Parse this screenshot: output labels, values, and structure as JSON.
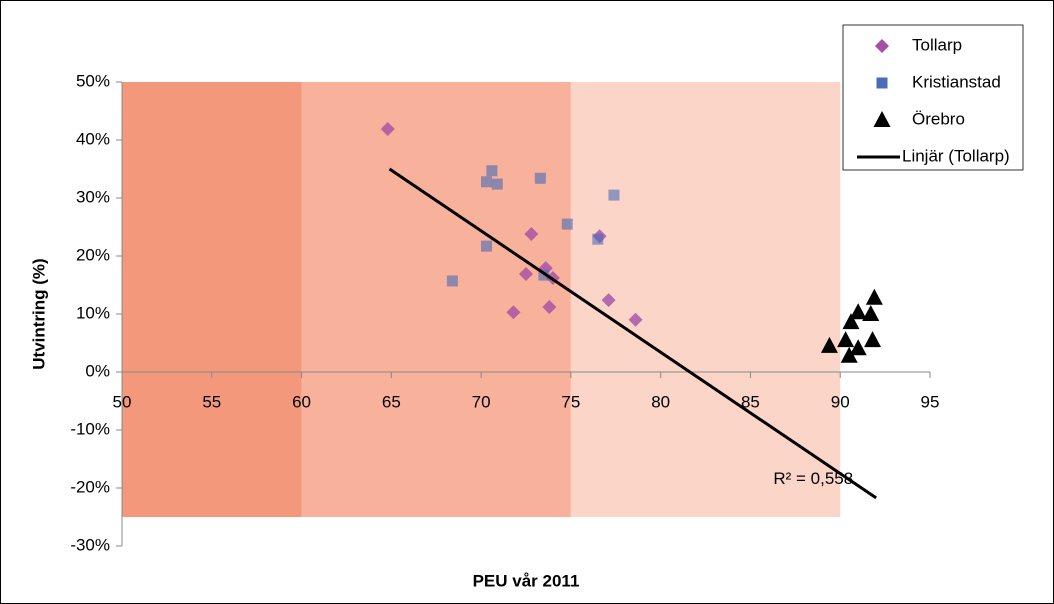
{
  "chart_data": {
    "type": "scatter",
    "x_label": "PEU vår 2011",
    "y_label": "Utvintring (%)",
    "xlim": [
      50,
      95
    ],
    "xticks": [
      50,
      55,
      60,
      65,
      70,
      75,
      80,
      85,
      90,
      95
    ],
    "ylim": [
      -30,
      50
    ],
    "yticks": [
      {
        "value": -30,
        "label": "-30%"
      },
      {
        "value": -20,
        "label": "-20%"
      },
      {
        "value": -10,
        "label": "-10%"
      },
      {
        "value": 0,
        "label": "0%"
      },
      {
        "value": 10,
        "label": "10%"
      },
      {
        "value": 20,
        "label": "20%"
      },
      {
        "value": 30,
        "label": "30%"
      },
      {
        "value": 40,
        "label": "40%"
      },
      {
        "value": 50,
        "label": "50%"
      }
    ],
    "bands": [
      {
        "xlim": [
          50,
          60
        ],
        "color": "#f4987c"
      },
      {
        "xlim": [
          60,
          75
        ],
        "color": "#f8b19b"
      },
      {
        "xlim": [
          75,
          90
        ],
        "color": "#fbd6c8"
      }
    ],
    "band_ylim": [
      -25,
      50
    ],
    "series": [
      {
        "name": "Tollarp",
        "color": "#a44fa8",
        "marker": "diamond",
        "x": [
          64.8,
          72.8,
          76.6,
          72.5,
          73.6,
          74.0,
          71.8,
          73.8,
          77.1,
          78.6
        ],
        "values": [
          41.9,
          23.8,
          23.4,
          16.9,
          17.9,
          16.2,
          10.3,
          11.2,
          12.4,
          9.0
        ]
      },
      {
        "name": "Kristianstad",
        "color": "#4a6bb5",
        "marker": "square",
        "x": [
          70.3,
          70.6,
          70.9,
          73.3,
          77.4,
          74.8,
          76.5,
          70.3,
          73.5,
          68.4
        ],
        "values": [
          32.8,
          34.7,
          32.4,
          33.4,
          30.5,
          25.5,
          22.9,
          21.7,
          16.7,
          15.7
        ]
      },
      {
        "name": "Örebro",
        "color": "#000000",
        "marker": "triangle",
        "x": [
          89.4,
          90.3,
          90.6,
          91.0,
          91.0,
          90.5,
          91.7,
          91.8,
          91.9
        ],
        "values": [
          4.5,
          5.5,
          8.6,
          10.3,
          4.1,
          2.8,
          10.0,
          5.5,
          12.8
        ]
      },
      {
        "name": "Linjär (Tollarp)",
        "color": "#000000",
        "marker": "line",
        "x": [
          64.9,
          92.0
        ],
        "values": [
          35.0,
          -21.7
        ]
      }
    ],
    "annotation": "R² = 0,558",
    "annotation_pos": [
      88.5,
      -18.5
    ]
  }
}
